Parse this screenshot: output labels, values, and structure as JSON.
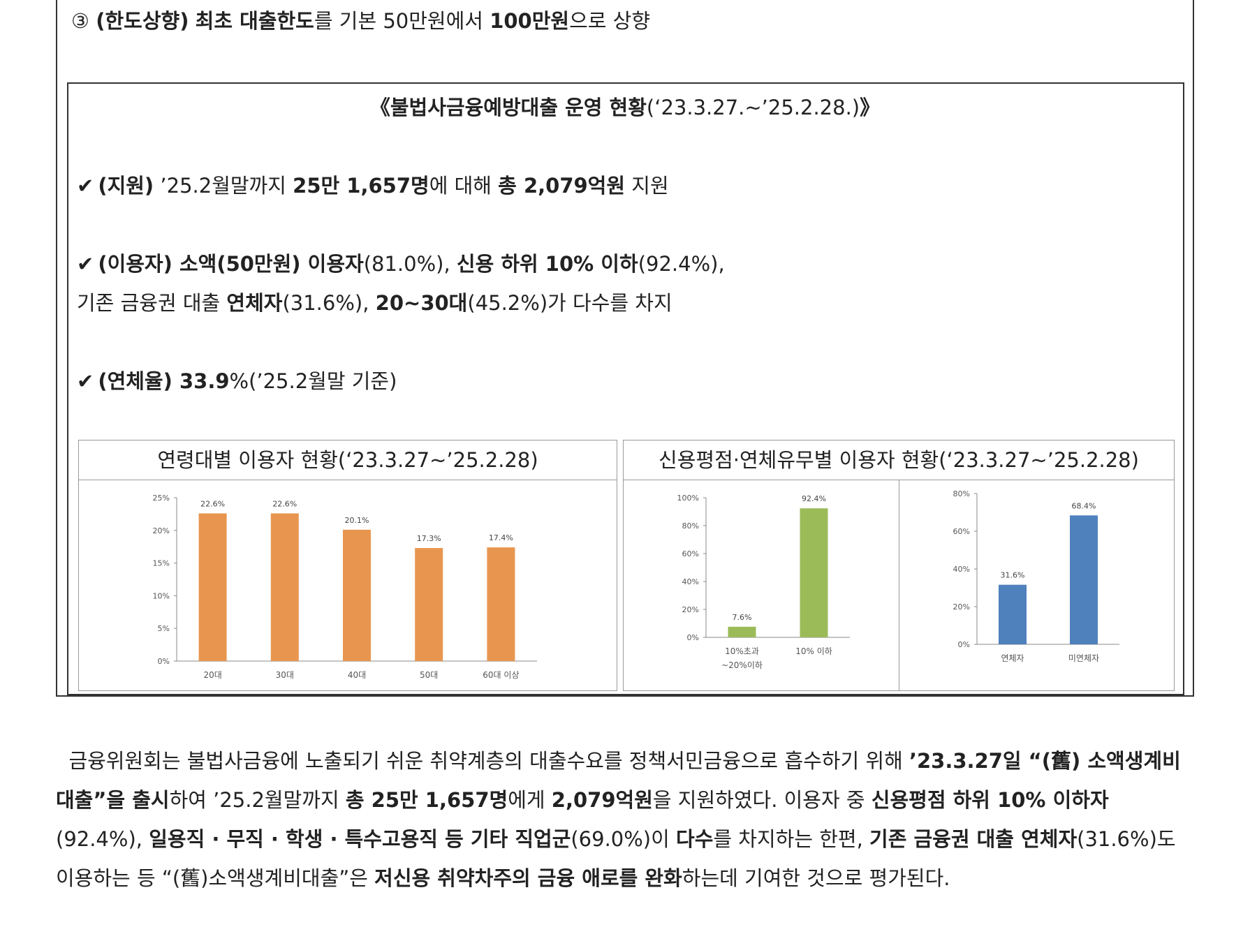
{
  "step": {
    "marker": "③",
    "tag": "(한도상향)",
    "first_bold": "최초 대출한도",
    "mid": "를 기본 50만원에서 ",
    "amount": "100만원",
    "end": "으로 상향"
  },
  "status": {
    "title_bold": "《불법사금융예방대출 운영 현황",
    "title_period": "(‘23.3.27.~’25.2.28.)",
    "title_close": "》"
  },
  "bullets": {
    "check_mark": "✔",
    "support": {
      "tag": "(지원)",
      "t1": " ’25.2월말까지 ",
      "b1": "25만 1,657명",
      "t2": "에 대해 ",
      "b2": "총 2,079억원",
      "t3": " 지원"
    },
    "users": {
      "b1": "(이용자) 소액(50만원) 이용자",
      "t1": "(81.0%), ",
      "b2": "신용 하위 10% 이하",
      "t2": "(92.4%),",
      "line2_t1": "기존 금융권 대출 ",
      "line2_b1": "연체자",
      "line2_t2": "(31.6%), ",
      "line2_b2": "20~30대",
      "line2_t3": "(45.2%)가 다수를 차지"
    },
    "delinquency": {
      "b1": "(연체율) 33.9",
      "t1": "%(’25.2월말 기준)"
    }
  },
  "chart_data": [
    {
      "type": "bar",
      "title": "연령대별 이용자 현황(‘23.3.27~’25.2.28)",
      "categories": [
        "20대",
        "30대",
        "40대",
        "50대",
        "60대 이상"
      ],
      "values": [
        22.6,
        22.6,
        20.1,
        17.3,
        17.4
      ],
      "data_labels": [
        "22.6%",
        "22.6%",
        "20.1%",
        "17.3%",
        "17.4%"
      ],
      "ylim": [
        0,
        25
      ],
      "yticks": [
        "0%",
        "5%",
        "10%",
        "15%",
        "20%",
        "25%"
      ],
      "color": "#E8964F"
    },
    {
      "type": "bar",
      "title": "신용평점·연체유무별 이용자 현황(‘23.3.27~’25.2.28)",
      "categories": [
        "10%초과 ~20%이하",
        "10% 이하"
      ],
      "category_lines": [
        [
          "10%초과",
          "~20%이하"
        ],
        [
          "10% 이하"
        ]
      ],
      "values": [
        7.6,
        92.4
      ],
      "data_labels": [
        "7.6%",
        "92.4%"
      ],
      "ylim": [
        0,
        100
      ],
      "yticks": [
        "0%",
        "20%",
        "40%",
        "60%",
        "80%",
        "100%"
      ],
      "color": "#9BBB59"
    },
    {
      "type": "bar",
      "categories": [
        "연체자",
        "미연체자"
      ],
      "values": [
        31.6,
        68.4
      ],
      "data_labels": [
        "31.6%",
        "68.4%"
      ],
      "ylim": [
        0,
        80
      ],
      "yticks": [
        "0%",
        "20%",
        "40%",
        "60%",
        "80%"
      ],
      "color": "#4F81BD"
    }
  ],
  "paragraph": {
    "p1": "  금융위원회는 불법사금융에 노출되기 쉬운 취약계층의 대출수요를 정책서민금융으로 흡수하기 위해 ",
    "b1": "’23.3.27일 “(舊) 소액생계비대출”을 출시",
    "p2": "하여 ’25.2월말까지 ",
    "b2": "총 25만 1,657명",
    "p3": "에게 ",
    "b3": "2,079억원",
    "p4": "을 지원하였다. 이용자 중 ",
    "b4": "신용평점 하위 10% 이하자",
    "p5": "(92.4%), ",
    "b5": "일용직 · 무직 · 학생 · 특수고용직 등 기타 직업군",
    "p6": "(69.0%)이 ",
    "b6": "다수",
    "p7": "를 차지하는 한편, ",
    "b7": "기존 금융권 대출 연체자",
    "p8": "(31.6%)도 이용하는 등 “(舊)소액생계비대출”은 ",
    "b8": "저신용 취약차주의 금융 애로를 완화",
    "p9": "하는데 기여한 것으로 평가된다."
  }
}
